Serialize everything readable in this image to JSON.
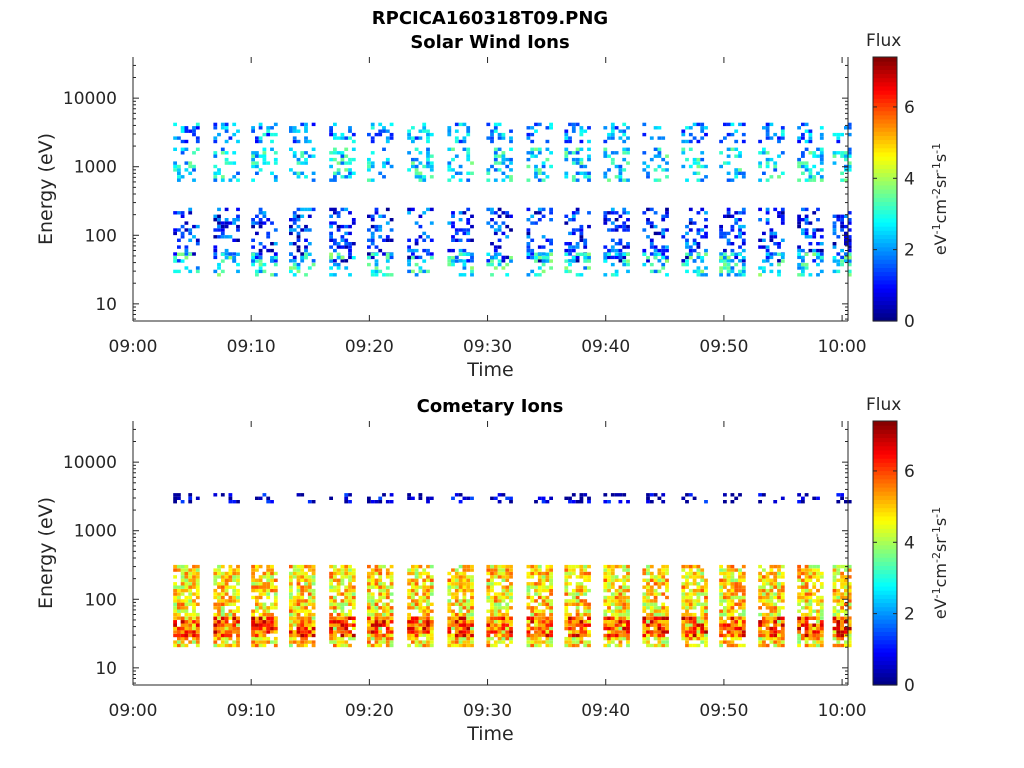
{
  "figure": {
    "title": "RPCICA160318T09.PNG",
    "colors": {
      "axis": "#262626",
      "background": "#ffffff"
    }
  },
  "chart_data": [
    {
      "type": "heatmap",
      "title": "Solar Wind Ions",
      "xlabel": "Time",
      "ylabel": "Energy (eV)",
      "x_ticks": [
        "09:00",
        "09:10",
        "09:20",
        "09:30",
        "09:40",
        "09:50",
        "10:00"
      ],
      "xlim_minutes": [
        0,
        60.5
      ],
      "y_ticks": [
        "10",
        "100",
        "1000",
        "10000"
      ],
      "y_scale": "log",
      "ylim_log10": [
        0.75,
        4.6
      ],
      "colorbar": {
        "label": "Flux",
        "units": "eV-1cm-2sr-1s-1",
        "range": [
          0,
          7.4
        ],
        "ticks": [
          "0",
          "2",
          "4",
          "6"
        ],
        "colormap": "jet"
      },
      "scan_start_minutes": [
        3.4,
        6.8,
        10.0,
        13.2,
        16.6,
        19.8,
        23.2,
        26.6,
        29.9,
        33.3,
        36.5,
        39.8,
        43.1,
        46.4,
        49.6,
        52.9,
        56.2,
        59.2
      ],
      "bands": [
        {
          "name": "high",
          "energy_range": [
            2200,
            4000
          ],
          "level": 2.0
        },
        {
          "name": "mid",
          "energy_range": [
            600,
            1800
          ],
          "level": 2.6
        },
        {
          "name": "low",
          "energy_range": [
            40,
            250
          ],
          "level": 1.2
        },
        {
          "name": "core",
          "energy_range": [
            25,
            50
          ],
          "level": 2.8
        }
      ]
    },
    {
      "type": "heatmap",
      "title": "Cometary Ions",
      "xlabel": "Time",
      "ylabel": "Energy (eV)",
      "x_ticks": [
        "09:00",
        "09:10",
        "09:20",
        "09:30",
        "09:40",
        "09:50",
        "10:00"
      ],
      "xlim_minutes": [
        0,
        60.5
      ],
      "y_ticks": [
        "10",
        "100",
        "1000",
        "10000"
      ],
      "y_scale": "log",
      "ylim_log10": [
        0.75,
        4.6
      ],
      "colorbar": {
        "label": "Flux",
        "units": "eV-1cm-2sr-1s-1",
        "range": [
          0,
          7.4
        ],
        "ticks": [
          "0",
          "2",
          "4",
          "6"
        ],
        "colormap": "jet"
      },
      "scan_start_minutes": [
        3.4,
        6.8,
        10.0,
        13.2,
        16.6,
        19.8,
        23.2,
        26.6,
        29.9,
        33.3,
        36.5,
        39.8,
        43.1,
        46.4,
        49.6,
        52.9,
        56.2,
        59.2
      ],
      "bands": [
        {
          "name": "high",
          "energy_range": [
            2500,
            3500
          ],
          "level": 0.4
        },
        {
          "name": "main",
          "energy_range": [
            20,
            300
          ],
          "level": 4.8
        },
        {
          "name": "peak",
          "energy_range": [
            28,
            50
          ],
          "level": 6.0
        }
      ]
    }
  ]
}
